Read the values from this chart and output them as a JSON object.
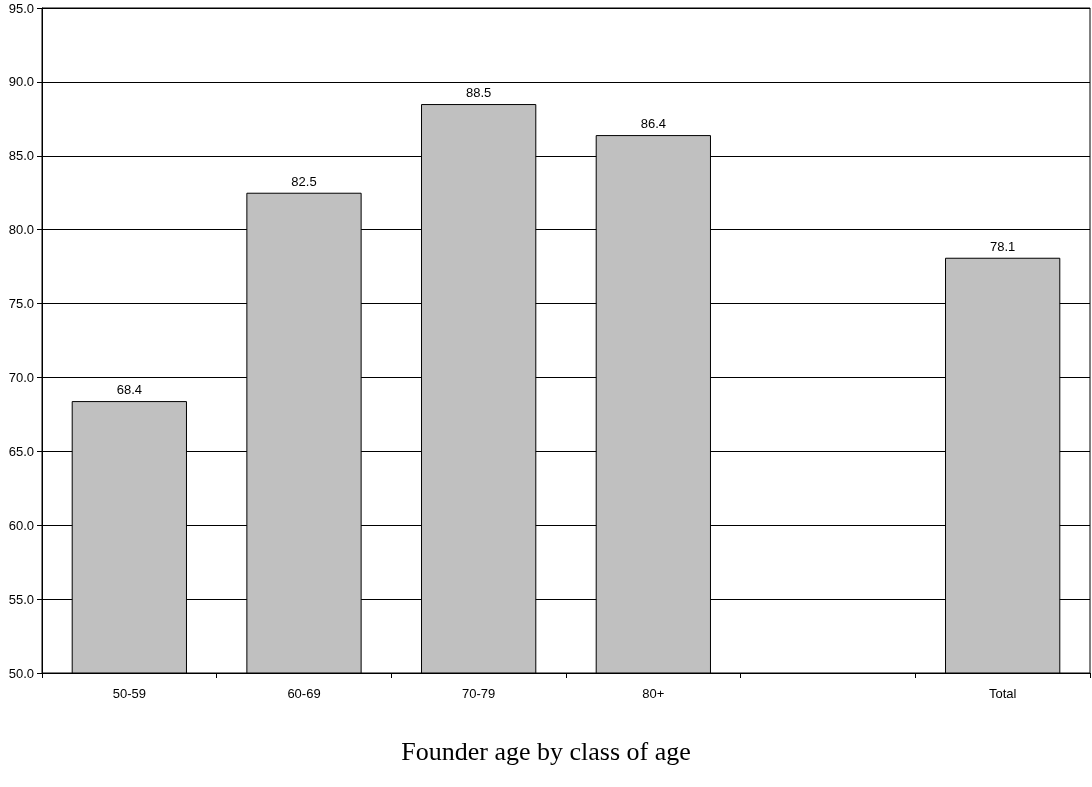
{
  "chart_data": {
    "type": "bar",
    "title": "Founder age by class of age",
    "categories": [
      "50-59",
      "60-69",
      "70-79",
      "80+",
      null,
      "Total"
    ],
    "values": [
      68.4,
      82.5,
      88.5,
      86.4,
      null,
      78.1
    ],
    "color": "#c0c0c0",
    "ylim": [
      50,
      95
    ],
    "yticks": [
      {
        "value": 50,
        "label": "50.0"
      },
      {
        "value": 55,
        "label": "55.0"
      },
      {
        "value": 60,
        "label": "60.0"
      },
      {
        "value": 65,
        "label": "65.0"
      },
      {
        "value": 70,
        "label": "70.0"
      },
      {
        "value": 75,
        "label": "75.0"
      },
      {
        "value": 80,
        "label": "80.0"
      },
      {
        "value": 85,
        "label": "85.0"
      },
      {
        "value": 90,
        "label": "90.0"
      },
      {
        "value": 95,
        "label": "95.0"
      }
    ],
    "grid": "y",
    "data_labels": true
  }
}
